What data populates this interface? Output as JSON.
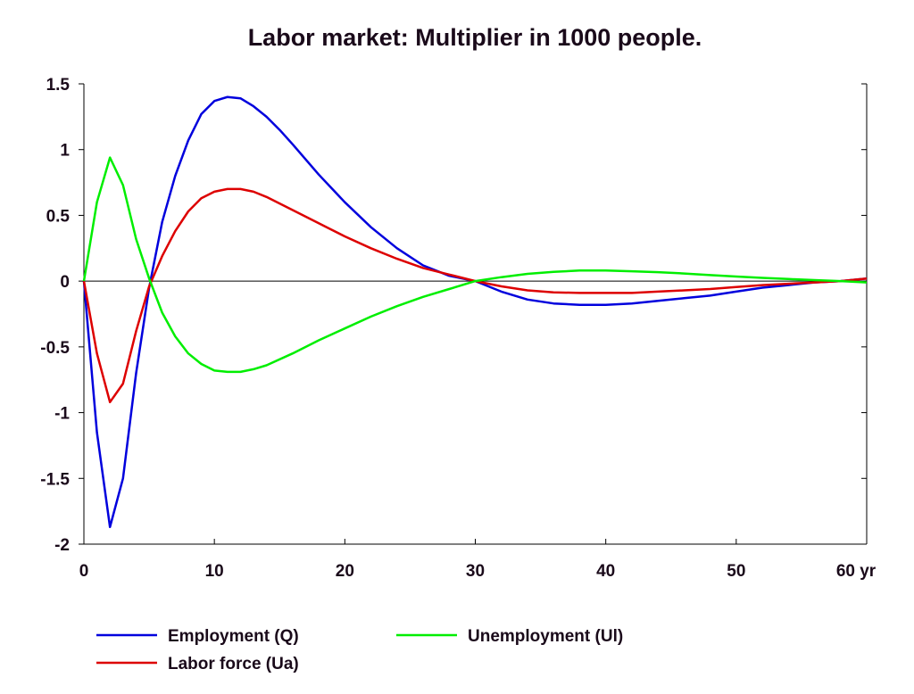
{
  "chart_data": {
    "type": "line",
    "title": "Labor market: Multiplier in 1000 people.",
    "xlabel": "",
    "ylabel": "",
    "xlim": [
      0,
      60
    ],
    "ylim": [
      -2,
      1.5
    ],
    "x_ticks": [
      0,
      10,
      20,
      30,
      40,
      50,
      60
    ],
    "x_tick_labels": [
      "0",
      "10",
      "20",
      "30",
      "40",
      "50",
      "60 yr"
    ],
    "y_ticks": [
      1.5,
      1,
      0.5,
      0,
      -0.5,
      -1,
      -1.5,
      -2
    ],
    "y_tick_labels": [
      "1.5",
      "1",
      "0.5",
      "0",
      "-0.5",
      "-1",
      "-1.5",
      "-2"
    ],
    "grid": false,
    "zero_line": true,
    "legend_position": "bottom",
    "series": [
      {
        "name": "Employment (Q)",
        "color": "#0000dd",
        "x": [
          0,
          1,
          2,
          3,
          4,
          5,
          6,
          7,
          8,
          9,
          10,
          11,
          12,
          13,
          14,
          15,
          16,
          18,
          20,
          22,
          24,
          26,
          28,
          30,
          32,
          34,
          36,
          38,
          40,
          42,
          44,
          46,
          48,
          50,
          52,
          54,
          56,
          58,
          60
        ],
        "y": [
          0,
          -1.15,
          -1.87,
          -1.5,
          -0.7,
          -0.05,
          0.45,
          0.8,
          1.07,
          1.27,
          1.37,
          1.4,
          1.39,
          1.33,
          1.25,
          1.15,
          1.04,
          0.81,
          0.6,
          0.41,
          0.25,
          0.12,
          0.04,
          0,
          -0.08,
          -0.14,
          -0.17,
          -0.18,
          -0.18,
          -0.17,
          -0.15,
          -0.13,
          -0.11,
          -0.08,
          -0.05,
          -0.03,
          -0.01,
          0,
          0.02
        ]
      },
      {
        "name": "Labor force (Ua)",
        "color": "#dd0000",
        "x": [
          0,
          1,
          2,
          3,
          4,
          5,
          6,
          7,
          8,
          9,
          10,
          11,
          12,
          13,
          14,
          16,
          18,
          20,
          22,
          24,
          26,
          28,
          30,
          32,
          34,
          36,
          38,
          40,
          42,
          44,
          46,
          48,
          50,
          52,
          54,
          56,
          58,
          60
        ],
        "y": [
          0,
          -0.55,
          -0.92,
          -0.78,
          -0.38,
          -0.04,
          0.19,
          0.38,
          0.53,
          0.63,
          0.68,
          0.7,
          0.7,
          0.68,
          0.64,
          0.54,
          0.44,
          0.34,
          0.25,
          0.17,
          0.1,
          0.05,
          0,
          -0.04,
          -0.07,
          -0.085,
          -0.09,
          -0.09,
          -0.09,
          -0.08,
          -0.07,
          -0.06,
          -0.045,
          -0.03,
          -0.02,
          -0.01,
          0,
          0.02
        ]
      },
      {
        "name": "Unemployment (Ul)",
        "color": "#00ee00",
        "x": [
          0,
          1,
          2,
          3,
          4,
          5,
          6,
          7,
          8,
          9,
          10,
          11,
          12,
          13,
          14,
          16,
          18,
          20,
          22,
          24,
          26,
          28,
          30,
          32,
          34,
          36,
          38,
          40,
          42,
          44,
          46,
          48,
          50,
          52,
          54,
          56,
          58,
          60
        ],
        "y": [
          0,
          0.6,
          0.94,
          0.73,
          0.32,
          0.02,
          -0.24,
          -0.42,
          -0.55,
          -0.63,
          -0.68,
          -0.69,
          -0.69,
          -0.67,
          -0.64,
          -0.55,
          -0.45,
          -0.36,
          -0.27,
          -0.19,
          -0.12,
          -0.06,
          0,
          0.03,
          0.055,
          0.07,
          0.08,
          0.08,
          0.075,
          0.068,
          0.058,
          0.046,
          0.035,
          0.025,
          0.016,
          0.008,
          0,
          -0.01
        ]
      }
    ]
  }
}
